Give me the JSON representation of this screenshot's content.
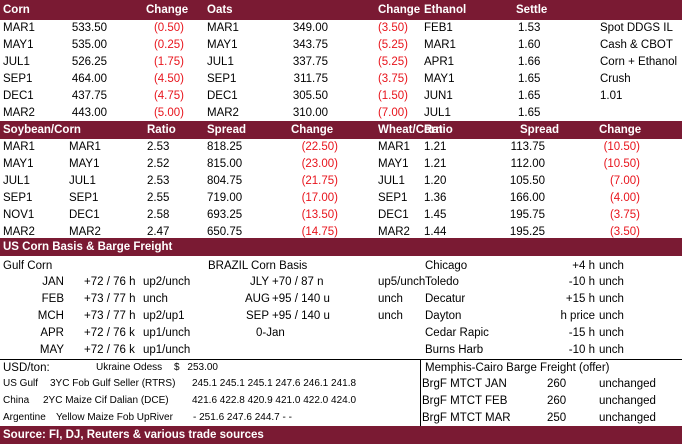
{
  "colors": {
    "band": "#7a1a33",
    "negative": "#e8141c"
  },
  "top": {
    "headers": [
      "Corn",
      "Change",
      "Oats",
      "Change",
      "Ethanol",
      "Settle"
    ],
    "corn": [
      [
        "MAR1",
        "533.50",
        "(0.50)"
      ],
      [
        "MAY1",
        "535.00",
        "(0.25)"
      ],
      [
        "JUL1",
        "526.25",
        "(1.75)"
      ],
      [
        "SEP1",
        "464.00",
        "(4.50)"
      ],
      [
        "DEC1",
        "437.75",
        "(4.75)"
      ],
      [
        "MAR2",
        "443.00",
        "(5.00)"
      ]
    ],
    "oats": [
      [
        "MAR1",
        "349.00",
        "(3.50)"
      ],
      [
        "MAY1",
        "343.75",
        "(5.25)"
      ],
      [
        "JUL1",
        "337.75",
        "(5.25)"
      ],
      [
        "SEP1",
        "311.75",
        "(3.75)"
      ],
      [
        "DEC1",
        "305.50",
        "(1.50)"
      ],
      [
        "MAR2",
        "310.00",
        "(7.00)"
      ]
    ],
    "ethanol": [
      [
        "FEB1",
        "1.53"
      ],
      [
        "MAR1",
        "1.60"
      ],
      [
        "APR1",
        "1.66"
      ],
      [
        "MAY1",
        "1.65"
      ],
      [
        "JUN1",
        "1.65"
      ],
      [
        "JUL1",
        "1.65"
      ]
    ],
    "notes": [
      "Spot DDGS IL",
      "Cash & CBOT",
      "Corn + Ethanol",
      "Crush",
      "1.01"
    ]
  },
  "mid": {
    "headers": [
      "Soybean/Corn",
      "Ratio",
      "Spread",
      "Change",
      "Wheat/Corn",
      "Ratio",
      "Spread",
      "Change"
    ],
    "soy": [
      [
        "MAR1",
        "MAR1",
        "2.53",
        "818.25",
        "(22.50)"
      ],
      [
        "MAY1",
        "MAY1",
        "2.52",
        "815.00",
        "(23.00)"
      ],
      [
        "JUL1",
        "JUL1",
        "2.53",
        "804.75",
        "(21.75)"
      ],
      [
        "SEP1",
        "SEP1",
        "2.55",
        "719.00",
        "(17.00)"
      ],
      [
        "NOV1",
        "DEC1",
        "2.58",
        "693.25",
        "(13.50)"
      ],
      [
        "MAR2",
        "MAR2",
        "2.47",
        "650.75",
        "(14.75)"
      ]
    ],
    "wheat": [
      [
        "MAR1",
        "1.21",
        "113.75",
        "(10.50)"
      ],
      [
        "MAY1",
        "1.21",
        "112.00",
        "(10.50)"
      ],
      [
        "JUL1",
        "1.20",
        "105.50",
        "(7.00)"
      ],
      [
        "SEP1",
        "1.36",
        "166.00",
        "(4.00)"
      ],
      [
        "DEC1",
        "1.45",
        "195.75",
        "(3.75)"
      ],
      [
        "MAR2",
        "1.44",
        "195.25",
        "(3.50)"
      ]
    ]
  },
  "basis": {
    "title": "US Corn Basis & Barge Freight",
    "gulf_title": "Gulf Corn",
    "gulf": [
      [
        "JAN",
        "+72 / 76 h",
        "up2/unch"
      ],
      [
        "FEB",
        "+73 / 77 h",
        "unch"
      ],
      [
        "MCH",
        "+73 / 77 h",
        "up2/up1"
      ],
      [
        "APR",
        "+72 / 76 k",
        "up1/unch"
      ],
      [
        "MAY",
        "+72 / 76 k",
        "up1/unch"
      ]
    ],
    "brazil_title": "BRAZIL Corn Basis",
    "brazil": [
      [
        "JLY",
        "+70 / 87 n",
        "up5/unch"
      ],
      [
        "AUG",
        "+95 / 140 u",
        "unch"
      ],
      [
        "SEP",
        "+95 / 140 u",
        "unch"
      ]
    ],
    "brazil_date": "0-Jan",
    "interior": [
      [
        "Chicago",
        "+4 h",
        "unch"
      ],
      [
        "Toledo",
        "-10 h",
        "unch"
      ],
      [
        "Decatur",
        "+15 h",
        "unch"
      ],
      [
        "Dayton",
        "h price",
        "unch"
      ],
      [
        "Cedar Rapic",
        "-15 h",
        "unch"
      ],
      [
        "Burns Harb",
        "-10 h",
        "unch"
      ]
    ]
  },
  "bottom": {
    "usd_label": "USD/ton:",
    "ukraine_label": "Ukraine Odess",
    "ukraine_cur": "$",
    "ukraine_val": "253.00",
    "rows": [
      {
        "origin": "US Gulf",
        "desc": "3YC Fob Gulf Seller (RTRS)",
        "vals": "245.1  245.1  245.1  247.6  246.1  241.8"
      },
      {
        "origin": "China",
        "desc": "2YC Maize Cif Dalian (DCE)",
        "vals": "421.6  422.8  420.9  421.0  422.0  424.0"
      },
      {
        "origin": "Argentine",
        "desc": "Yellow Maize Fob UpRiver",
        "vals": "-   251.6  247.6  244.7  -   -"
      }
    ],
    "barge_title": "Memphis-Cairo Barge Freight (offer)",
    "barge": [
      [
        "BrgF MTCT JAN",
        "260",
        "unchanged"
      ],
      [
        "BrgF MTCT FEB",
        "260",
        "unchanged"
      ],
      [
        "BrgF MTCT MAR",
        "250",
        "unchanged"
      ]
    ],
    "source": "Source: FI, DJ, Reuters & various trade sources"
  }
}
